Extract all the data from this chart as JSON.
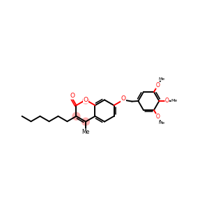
{
  "bond_color": "#000000",
  "oxygen_color": "#ff0000",
  "highlight_color": "#ffb0b0",
  "bg_color": "#ffffff",
  "line_width": 1.4,
  "font_size": 6.5,
  "fig_width": 3.0,
  "fig_height": 3.0,
  "dpi": 100,
  "xlim": [
    0,
    10
  ],
  "ylim": [
    3.0,
    8.0
  ]
}
